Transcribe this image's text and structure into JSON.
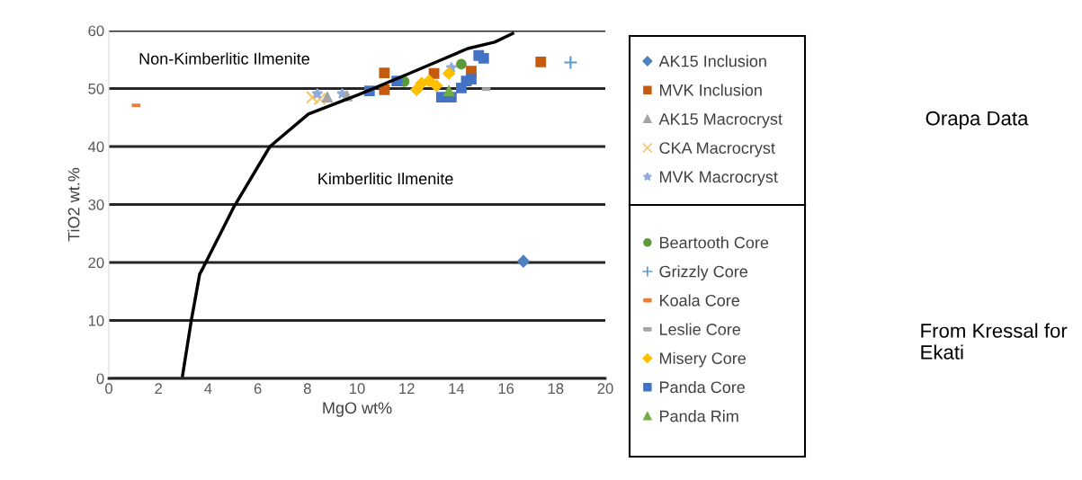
{
  "chart_data": {
    "type": "scatter",
    "xlabel": "MgO wt%",
    "ylabel": "TiO2 wt.%",
    "xlim": [
      0,
      20
    ],
    "xticks": [
      0,
      2,
      4,
      6,
      8,
      10,
      12,
      14,
      16,
      18,
      20
    ],
    "ylim": [
      0,
      60
    ],
    "yticks": [
      0,
      10,
      20,
      30,
      40,
      50,
      60
    ],
    "grid": "y",
    "legend": "right",
    "annotations": [
      "Non-Kimberlitic Ilmenite",
      "Kimberlitic Ilmenite",
      "Orapa Data",
      "From Kressal for Ekati"
    ],
    "series": [
      {
        "name": "AK15 Inclusion",
        "color": "#4f81bd",
        "marker": "diamond",
        "x": [
          16.7
        ],
        "values": [
          20.2
        ]
      },
      {
        "name": "MVK Inclusion",
        "color": "#c55a11",
        "marker": "square",
        "x": [
          17.4,
          11.1,
          11.1,
          13.1,
          14.6
        ],
        "values": [
          54.6,
          52.7,
          49.8,
          52.6,
          53.0
        ]
      },
      {
        "name": "AK15 Macrocryst",
        "color": "#a5a5a5",
        "marker": "triangle",
        "x": [
          8.8,
          9.6
        ],
        "values": [
          48.5,
          48.7
        ]
      },
      {
        "name": "CKA Macrocryst",
        "color": "#f4c56b",
        "marker": "cross",
        "x": [
          8.2,
          8.5
        ],
        "values": [
          48.5,
          48.2
        ]
      },
      {
        "name": "MVK Macrocryst",
        "color": "#8faadc",
        "marker": "star",
        "x": [
          8.4,
          9.4,
          13.8
        ],
        "values": [
          49.1,
          49.1,
          53.6
        ]
      },
      {
        "name": "Beartooth Core",
        "color": "#5b9a3c",
        "marker": "circle",
        "x": [
          11.9,
          14.2
        ],
        "values": [
          51.2,
          54.2
        ]
      },
      {
        "name": "Grizzly Core",
        "color": "#5b9bd5",
        "marker": "plus",
        "x": [
          18.6
        ],
        "values": [
          54.5
        ]
      },
      {
        "name": "Koala Core",
        "color": "#ed7d31",
        "x": [
          1.1
        ],
        "values": [
          47.1
        ]
      },
      {
        "name": "Leslie Core",
        "color": "#a5a5a5",
        "x": [
          15.2
        ],
        "values": [
          49.9
        ]
      },
      {
        "name": "Misery Core",
        "color": "#ffc000",
        "marker": "diamond",
        "x": [
          12.4,
          12.6,
          12.9,
          13.2,
          13.7
        ],
        "values": [
          49.8,
          50.9,
          51.3,
          50.5,
          52.6
        ]
      },
      {
        "name": "Panda Core",
        "color": "#4472c4",
        "marker": "square",
        "x": [
          10.5,
          11.6,
          13.4,
          13.8,
          14.2,
          14.4,
          14.6,
          14.9,
          15.1
        ],
        "values": [
          49.6,
          51.3,
          48.5,
          48.5,
          50.1,
          51.3,
          51.6,
          55.7,
          55.2
        ]
      },
      {
        "name": "Panda Rim",
        "color": "#70ad47",
        "marker": "triangle",
        "x": [
          13.7
        ],
        "values": [
          49.6
        ]
      },
      {
        "type": "line",
        "color": "#000000",
        "marker": "none",
        "x": [
          2.97,
          3.33,
          3.66,
          3.8,
          5.04,
          6.49,
          8.04,
          10.1,
          12.1,
          14.46,
          15.54,
          16.27
        ],
        "values": [
          0.5,
          10.2,
          18.0,
          19.1,
          29.6,
          40.0,
          45.6,
          49.0,
          52.6,
          56.9,
          58.0,
          59.5
        ]
      }
    ]
  }
}
